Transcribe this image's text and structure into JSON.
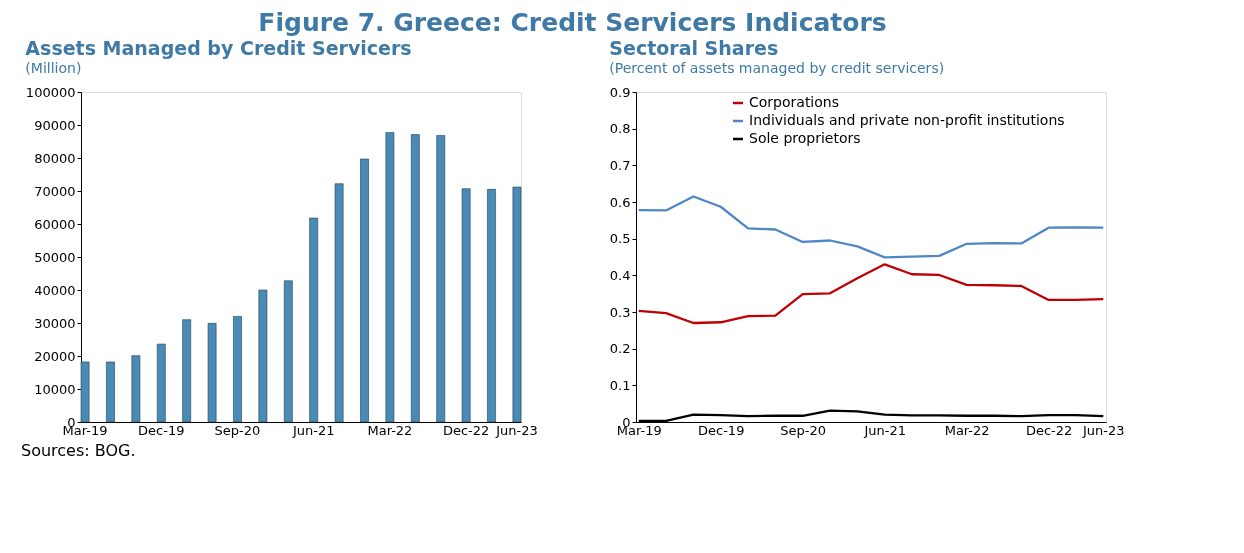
{
  "chart_data": [
    {
      "type": "bar",
      "title": "Assets Managed by Credit Servicers",
      "subtitle": "(Million)",
      "annotations": [
        "Figure 7. Greece: Credit Servicers Indicators",
        "Sources: BOG."
      ],
      "categories": [
        "Mar-19",
        null,
        null,
        "Dec-19",
        null,
        null,
        "Sep-20",
        null,
        null,
        "Jun-21",
        null,
        null,
        "Mar-22",
        null,
        null,
        "Dec-22",
        null,
        "Jun-23"
      ],
      "series": [
        {
          "color": "#4a8bb5",
          "values": [
            18200,
            18200,
            20100,
            23600,
            31000,
            29900,
            32000,
            40000,
            42800,
            61800,
            72200,
            79700,
            87700,
            87100,
            86800,
            70700,
            70500,
            71200
          ]
        }
      ],
      "ylim": [
        0,
        100000
      ],
      "yticks": [
        0,
        10000,
        20000,
        30000,
        40000,
        50000,
        60000,
        70000,
        80000,
        90000,
        100000
      ],
      "grid": false,
      "legend": false
    },
    {
      "type": "line",
      "title": "Sectoral Shares",
      "subtitle": "(Percent of assets managed by credit servicers)",
      "categories": [
        "Mar-19",
        null,
        null,
        "Dec-19",
        null,
        null,
        "Sep-20",
        null,
        null,
        "Jun-21",
        null,
        null,
        "Mar-22",
        null,
        null,
        "Dec-22",
        null,
        "Jun-23"
      ],
      "series": [
        {
          "name": "Corporations",
          "color": "#c00000",
          "values": [
            0.303,
            0.297,
            0.27,
            0.272,
            0.289,
            0.29,
            0.349,
            0.351,
            0.392,
            0.43,
            0.403,
            0.401,
            0.374,
            0.373,
            0.371,
            0.333,
            0.333,
            0.335
          ]
        },
        {
          "name": "Individuals and private non-profit institutions",
          "color": "#4f86c6",
          "values": [
            0.578,
            0.577,
            0.615,
            0.587,
            0.528,
            0.525,
            0.491,
            0.495,
            0.479,
            0.449,
            0.451,
            0.453,
            0.486,
            0.488,
            0.487,
            0.53,
            0.531,
            0.53
          ]
        },
        {
          "name": "Sole proprietors",
          "color": "#000000",
          "values": [
            0.003,
            0.003,
            0.02,
            0.019,
            0.016,
            0.017,
            0.017,
            0.031,
            0.029,
            0.02,
            0.018,
            0.018,
            0.017,
            0.017,
            0.016,
            0.019,
            0.019,
            0.016
          ]
        }
      ],
      "ylim": [
        0,
        0.9
      ],
      "yticks": [
        0,
        0.1,
        0.2,
        0.3,
        0.4,
        0.5,
        0.6,
        0.7,
        0.8,
        0.9
      ],
      "grid": false,
      "legend": "top",
      "marker": "none",
      "line_style": "solid"
    }
  ]
}
